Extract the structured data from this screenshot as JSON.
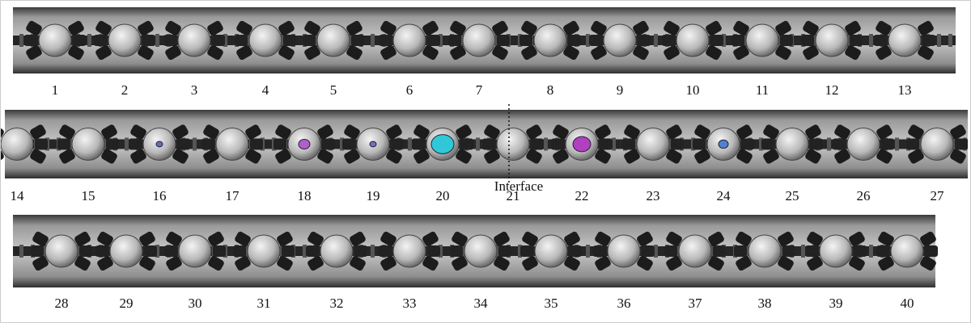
{
  "rows": [
    {
      "labels": [
        1,
        2,
        3,
        4,
        5,
        6,
        7,
        8,
        9,
        10,
        11,
        12,
        13
      ]
    },
    {
      "labels": [
        14,
        15,
        16,
        17,
        18,
        19,
        20,
        21,
        22,
        23,
        24,
        25,
        26,
        27
      ]
    },
    {
      "labels": [
        28,
        29,
        30,
        31,
        32,
        33,
        34,
        35,
        36,
        37,
        38,
        39,
        40
      ]
    }
  ],
  "interface": {
    "label": "Interface"
  }
}
